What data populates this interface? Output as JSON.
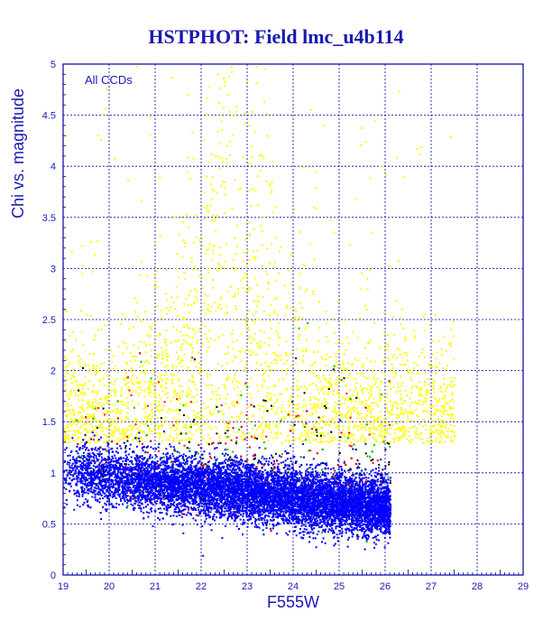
{
  "chart_data": {
    "type": "scatter",
    "title": "HSTPHOT: Field lmc_u4b114",
    "xlabel": "F555W",
    "ylabel": "Chi vs. magnitude",
    "annotation": "All CCDs",
    "xlim": [
      19,
      29
    ],
    "ylim": [
      0,
      5
    ],
    "x_ticks": [
      "19",
      "20",
      "21",
      "22",
      "23",
      "24",
      "25",
      "26",
      "27",
      "28",
      "29"
    ],
    "y_ticks": [
      "0",
      "0.5",
      "1",
      "1.5",
      "2",
      "2.5",
      "3",
      "3.5",
      "4",
      "4.5",
      "5"
    ],
    "grid": true,
    "legend": "none",
    "colors": {
      "axis": "#0000a0",
      "text": "#1a1ab0",
      "points_main": "#0000ff",
      "points_high_chi": "#ffff00",
      "points_other": [
        "#00c000",
        "#ff0000",
        "#000000"
      ]
    },
    "series": [
      {
        "color": "#0000ff",
        "description_points": [
          [
            19.2,
            0.95
          ],
          [
            20.0,
            1.0
          ],
          [
            21.0,
            1.0
          ],
          [
            22.0,
            1.0
          ],
          [
            23.0,
            0.95
          ],
          [
            24.0,
            0.9
          ],
          [
            25.0,
            0.85
          ],
          [
            25.8,
            0.8
          ]
        ]
      },
      {
        "color": "#ffff00",
        "description_points": [
          [
            20.5,
            2.0
          ],
          [
            21.5,
            2.3
          ],
          [
            22.2,
            2.6
          ],
          [
            22.8,
            2.4
          ],
          [
            23.5,
            2.0
          ],
          [
            24.5,
            1.7
          ],
          [
            26.0,
            1.5
          ],
          [
            27.5,
            2.0
          ]
        ]
      }
    ]
  }
}
